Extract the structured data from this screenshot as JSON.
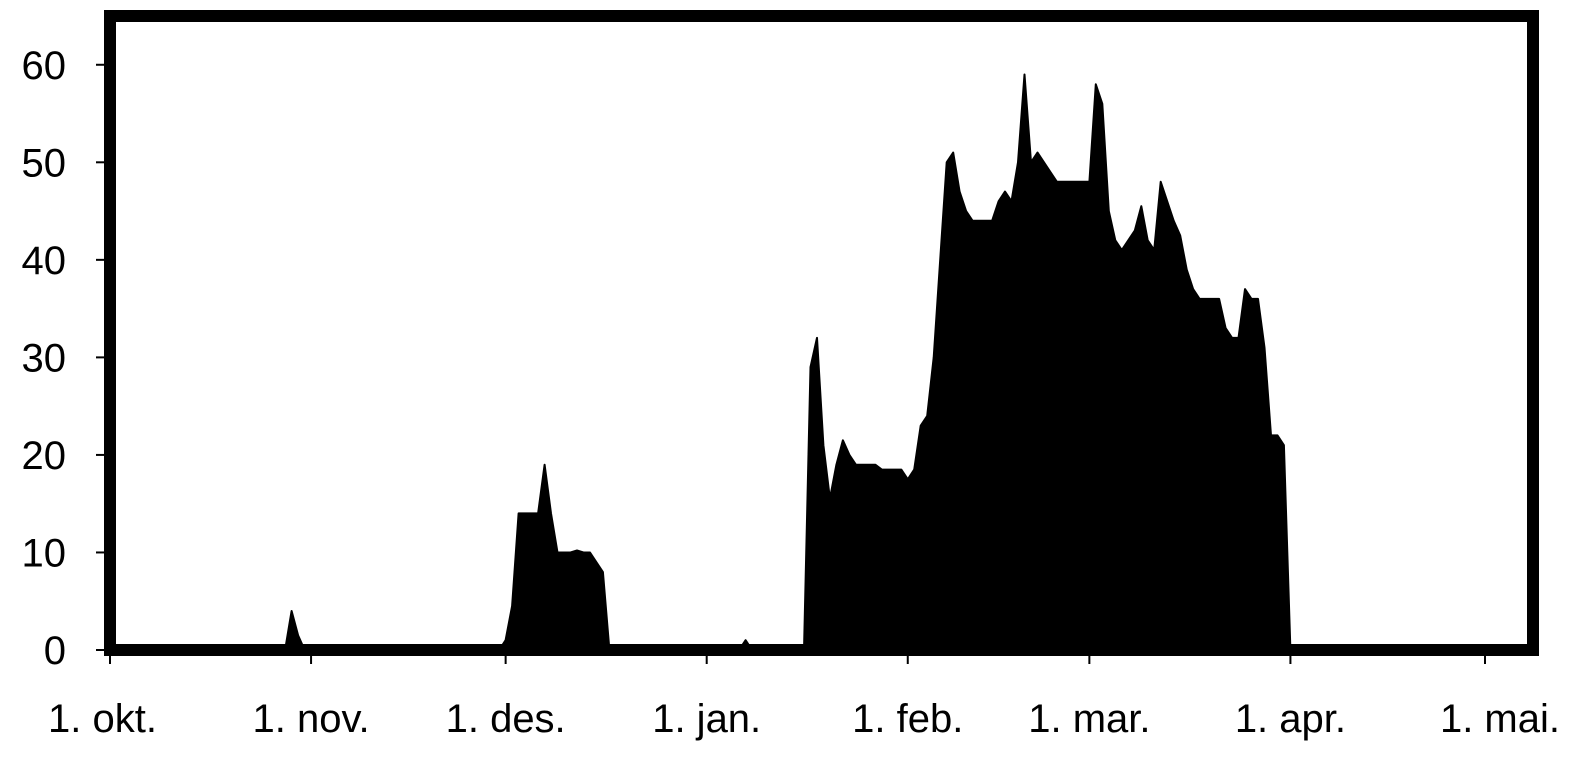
{
  "chart_data": {
    "type": "area",
    "title": "",
    "xlabel": "",
    "ylabel": "",
    "ylim": [
      0,
      65
    ],
    "xlim": [
      "1. okt.",
      "1. mai."
    ],
    "grid": false,
    "legend": "none",
    "fill_color": "#000000",
    "y_ticks": [
      0,
      10,
      20,
      30,
      40,
      50,
      60
    ],
    "y_tick_labels": [
      "0",
      "10",
      "20",
      "30",
      "40",
      "50",
      "60"
    ],
    "x_ticks": [
      {
        "label": "1. okt.",
        "day": 0
      },
      {
        "label": "1. nov.",
        "day": 31
      },
      {
        "label": "1. des.",
        "day": 61
      },
      {
        "label": "1. jan.",
        "day": 92
      },
      {
        "label": "1. feb.",
        "day": 123
      },
      {
        "label": "1. mar.",
        "day": 151
      },
      {
        "label": "1. apr.",
        "day": 182
      },
      {
        "label": "1. mai.",
        "day": 212
      }
    ],
    "series": [
      {
        "name": "",
        "points": [
          [
            0,
            0
          ],
          [
            27,
            0
          ],
          [
            28,
            4
          ],
          [
            29,
            1.5
          ],
          [
            30,
            0
          ],
          [
            60,
            0
          ],
          [
            61,
            1
          ],
          [
            62,
            4.5
          ],
          [
            63,
            14
          ],
          [
            66,
            14
          ],
          [
            67,
            19
          ],
          [
            68,
            14
          ],
          [
            69,
            10
          ],
          [
            71,
            10
          ],
          [
            72,
            10.2
          ],
          [
            73,
            10
          ],
          [
            74,
            10
          ],
          [
            76,
            8
          ],
          [
            77,
            0
          ],
          [
            97,
            0
          ],
          [
            98,
            1
          ],
          [
            99,
            0
          ],
          [
            107,
            0
          ],
          [
            108,
            29
          ],
          [
            109,
            32
          ],
          [
            110,
            21
          ],
          [
            111,
            15.5
          ],
          [
            112,
            19
          ],
          [
            113,
            21.5
          ],
          [
            114,
            20
          ],
          [
            115,
            19
          ],
          [
            118,
            19
          ],
          [
            119,
            18.5
          ],
          [
            122,
            18.5
          ],
          [
            123,
            17.5
          ],
          [
            124,
            18.5
          ],
          [
            125,
            23
          ],
          [
            126,
            24
          ],
          [
            127,
            30
          ],
          [
            128,
            40
          ],
          [
            129,
            50
          ],
          [
            130,
            51
          ],
          [
            131,
            47
          ],
          [
            132,
            45
          ],
          [
            133,
            44
          ],
          [
            136,
            44
          ],
          [
            137,
            46
          ],
          [
            138,
            47
          ],
          [
            139,
            46
          ],
          [
            140,
            50
          ],
          [
            141,
            59
          ],
          [
            142,
            50
          ],
          [
            143,
            51
          ],
          [
            145,
            49
          ],
          [
            146,
            48
          ],
          [
            151,
            48
          ],
          [
            152,
            58
          ],
          [
            153,
            56
          ],
          [
            154,
            45
          ],
          [
            155,
            42
          ],
          [
            156,
            41
          ],
          [
            157,
            42
          ],
          [
            158,
            43
          ],
          [
            159,
            45.5
          ],
          [
            160,
            42
          ],
          [
            161,
            41
          ],
          [
            162,
            48
          ],
          [
            163,
            46
          ],
          [
            164,
            44
          ],
          [
            165,
            42.5
          ],
          [
            166,
            39
          ],
          [
            167,
            37
          ],
          [
            168,
            36
          ],
          [
            171,
            36
          ],
          [
            172,
            33
          ],
          [
            173,
            32
          ],
          [
            174,
            32
          ],
          [
            175,
            37
          ],
          [
            176,
            36
          ],
          [
            177,
            36
          ],
          [
            178,
            31
          ],
          [
            179,
            22
          ],
          [
            180,
            22
          ],
          [
            181,
            21
          ],
          [
            182,
            0
          ],
          [
            212,
            0
          ]
        ]
      }
    ]
  }
}
